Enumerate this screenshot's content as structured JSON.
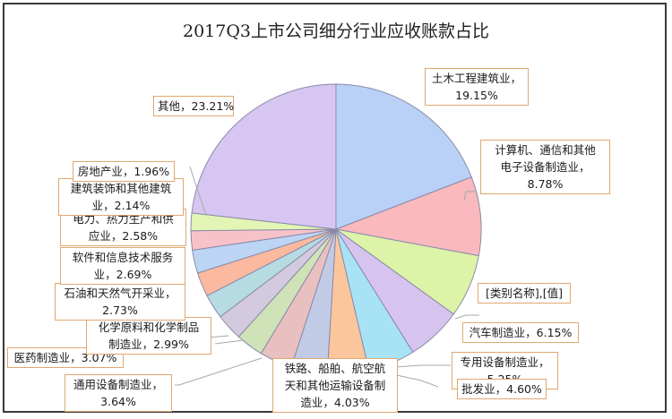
{
  "chart_data": {
    "type": "pie",
    "title": "2017Q3上市公司细分行业应收账款占比",
    "start_angle_deg": 0,
    "direction": "clockwise",
    "slices": [
      {
        "label": "土木工程建筑业",
        "value": 19.15,
        "display": "土木工程建筑业，|19.15%",
        "color": "#b9d1f7"
      },
      {
        "label": "计算机、通信和其他电子设备制造业",
        "value": 8.78,
        "display": "计算机、通信和其他|电子设备制造业，|8.78%",
        "color": "#f9b9bd"
      },
      {
        "label": "[类别名称]",
        "value": 7.03,
        "display": "[类别名称],[值]",
        "color": "#ddf3a8"
      },
      {
        "label": "汽车制造业",
        "value": 6.15,
        "display": "汽车制造业，6.15%",
        "color": "#d6c4ef"
      },
      {
        "label": "专用设备制造业",
        "value": 5.25,
        "display": "专用设备制造业，|5.25%",
        "color": "#a8e3f5"
      },
      {
        "label": "批发业",
        "value": 4.6,
        "display": "批发业，4.60%",
        "color": "#fcc69c"
      },
      {
        "label": "铁路、船舶、航空航天和其他运输设备制造业",
        "value": 4.03,
        "display": "铁路、船舶、航空航|天和其他运输设备制|造业，4.03%",
        "color": "#c2cbe6"
      },
      {
        "label": "通用设备制造业",
        "value": 3.64,
        "display": "通用设备制造业，|3.64%",
        "color": "#e8c0c0"
      },
      {
        "label": "医药制造业",
        "value": 3.07,
        "display": "医药制造业，3.07%",
        "color": "#cfe2b8"
      },
      {
        "label": "化学原料和化学制品制造业",
        "value": 2.99,
        "display": "化学原料和化学制品|制造业，2.99%",
        "color": "#d3cadf"
      },
      {
        "label": "石油和天然气开采业",
        "value": 2.73,
        "display": "石油和天然气开采业，|2.73%",
        "color": "#b7dbe3"
      },
      {
        "label": "软件和信息技术服务业",
        "value": 2.69,
        "display": "软件和信息技术服务|业，2.69%",
        "color": "#fbb9a0"
      },
      {
        "label": "电力、热力生产和供应业",
        "value": 2.58,
        "display": "电力、热力生产和供|应业，2.58%",
        "color": "#bcd5f5"
      },
      {
        "label": "建筑装饰和其他建筑业",
        "value": 2.14,
        "display": "建筑装饰和其他建筑|业，2.14%",
        "color": "#f8c3c8"
      },
      {
        "label": "房地产业",
        "value": 1.96,
        "display": "房地产业，1.96%",
        "color": "#e2f5b5"
      },
      {
        "label": "其他",
        "value": 23.21,
        "display": "其他，23.21%",
        "color": "#d7c6f1"
      }
    ],
    "legend": "none",
    "data_labels": "category name and percentage, orange-bordered boxes with leader lines"
  },
  "chart": {
    "title": "2017Q3上市公司细分行业应收账款占比",
    "labels": {
      "civil": {
        "line1": "土木工程建筑业，",
        "line2": "19.15%"
      },
      "computer": {
        "line1": "计算机、通信和其他",
        "line2": "电子设备制造业，",
        "line3": "8.78%"
      },
      "placeholder": {
        "line1": "[类别名称],[值]"
      },
      "auto": {
        "line1": "汽车制造业，6.15%"
      },
      "special_equip": {
        "line1": "专用设备制造业，",
        "line2": "5.25%"
      },
      "wholesale": {
        "line1": "批发业，4.60%"
      },
      "transport": {
        "line1": "铁路、船舶、航空航",
        "line2": "天和其他运输设备制",
        "line3": "造业，4.03%"
      },
      "general_equip": {
        "line1": "通用设备制造业，",
        "line2": "3.64%"
      },
      "pharma": {
        "line1": "医药制造业，3.07%"
      },
      "chemical": {
        "line1": "化学原料和化学制品",
        "line2": "制造业，2.99%"
      },
      "oil": {
        "line1": "石油和天然气开采业，",
        "line2": "2.73%"
      },
      "software": {
        "line1": "软件和信息技术服务",
        "line2": "业，2.69%"
      },
      "power": {
        "line1": "电力、热力生产和供",
        "line2": "应业，2.58%"
      },
      "decoration": {
        "line1": "建筑装饰和其他建筑",
        "line2": "业，2.14%"
      },
      "realestate": {
        "line1": "房地产业，1.96%"
      },
      "other": {
        "line1": "其他，23.21%"
      }
    }
  }
}
